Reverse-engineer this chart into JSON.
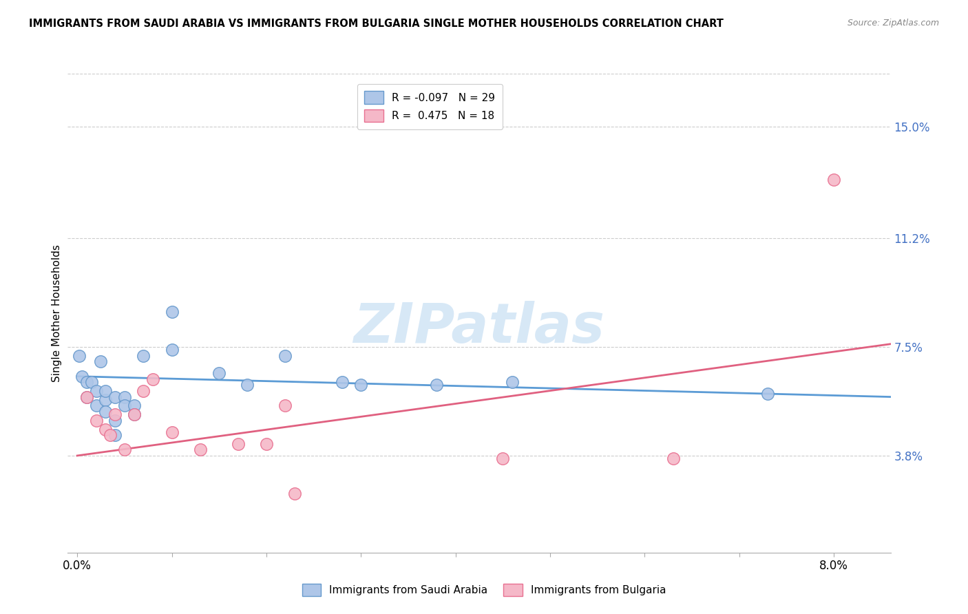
{
  "title": "IMMIGRANTS FROM SAUDI ARABIA VS IMMIGRANTS FROM BULGARIA SINGLE MOTHER HOUSEHOLDS CORRELATION CHART",
  "source": "Source: ZipAtlas.com",
  "ylabel": "Single Mother Households",
  "x_ticks": [
    0.0,
    0.01,
    0.02,
    0.03,
    0.04,
    0.05,
    0.06,
    0.07,
    0.08
  ],
  "y_ticks": [
    0.038,
    0.075,
    0.112,
    0.15
  ],
  "y_tick_labels": [
    "3.8%",
    "7.5%",
    "11.2%",
    "15.0%"
  ],
  "xlim": [
    -0.001,
    0.086
  ],
  "ylim": [
    0.005,
    0.168
  ],
  "legend_r1": "R = -0.097",
  "legend_n1": "N = 29",
  "legend_r2": "R =  0.475",
  "legend_n2": "N = 18",
  "color_blue": "#aec6e8",
  "color_pink": "#f5b8c8",
  "color_blue_edge": "#6699cc",
  "color_pink_edge": "#e87090",
  "color_line_blue": "#5b9bd5",
  "color_line_pink": "#e06080",
  "color_axis_label": "#4472c4",
  "watermark_color": "#d0e4f5",
  "blue_scatter_x": [
    0.0002,
    0.0005,
    0.001,
    0.001,
    0.0015,
    0.002,
    0.002,
    0.0025,
    0.003,
    0.003,
    0.003,
    0.004,
    0.004,
    0.004,
    0.005,
    0.005,
    0.006,
    0.006,
    0.007,
    0.01,
    0.01,
    0.015,
    0.018,
    0.022,
    0.028,
    0.03,
    0.038,
    0.046,
    0.073
  ],
  "blue_scatter_y": [
    0.072,
    0.065,
    0.063,
    0.058,
    0.063,
    0.06,
    0.055,
    0.07,
    0.057,
    0.053,
    0.06,
    0.058,
    0.05,
    0.045,
    0.058,
    0.055,
    0.055,
    0.052,
    0.072,
    0.087,
    0.074,
    0.066,
    0.062,
    0.072,
    0.063,
    0.062,
    0.062,
    0.063,
    0.059
  ],
  "pink_scatter_x": [
    0.001,
    0.002,
    0.003,
    0.0035,
    0.004,
    0.005,
    0.006,
    0.007,
    0.008,
    0.01,
    0.013,
    0.017,
    0.02,
    0.022,
    0.023,
    0.045,
    0.063,
    0.08
  ],
  "pink_scatter_y": [
    0.058,
    0.05,
    0.047,
    0.045,
    0.052,
    0.04,
    0.052,
    0.06,
    0.064,
    0.046,
    0.04,
    0.042,
    0.042,
    0.055,
    0.025,
    0.037,
    0.037,
    0.132
  ],
  "blue_trend_x": [
    0.0,
    0.086
  ],
  "blue_trend_y": [
    0.065,
    0.058
  ],
  "pink_trend_x": [
    0.0,
    0.086
  ],
  "pink_trend_y": [
    0.038,
    0.076
  ],
  "marker_size": 160
}
